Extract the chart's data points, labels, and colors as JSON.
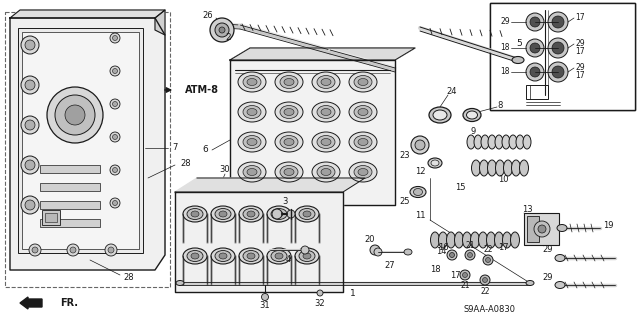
{
  "bg_color": "#ffffff",
  "main_color": "#1a1a1a",
  "dashed_color": "#666666",
  "diagram_code": "S9AA-A0830",
  "atm_ref": "ATM-8",
  "fr_label": "FR.",
  "fig_width": 6.4,
  "fig_height": 3.19,
  "dpi": 100,
  "gray_fill": "#c8c8c8",
  "light_gray": "#e0e0e0",
  "dark_gray": "#505050",
  "mid_gray": "#888888"
}
